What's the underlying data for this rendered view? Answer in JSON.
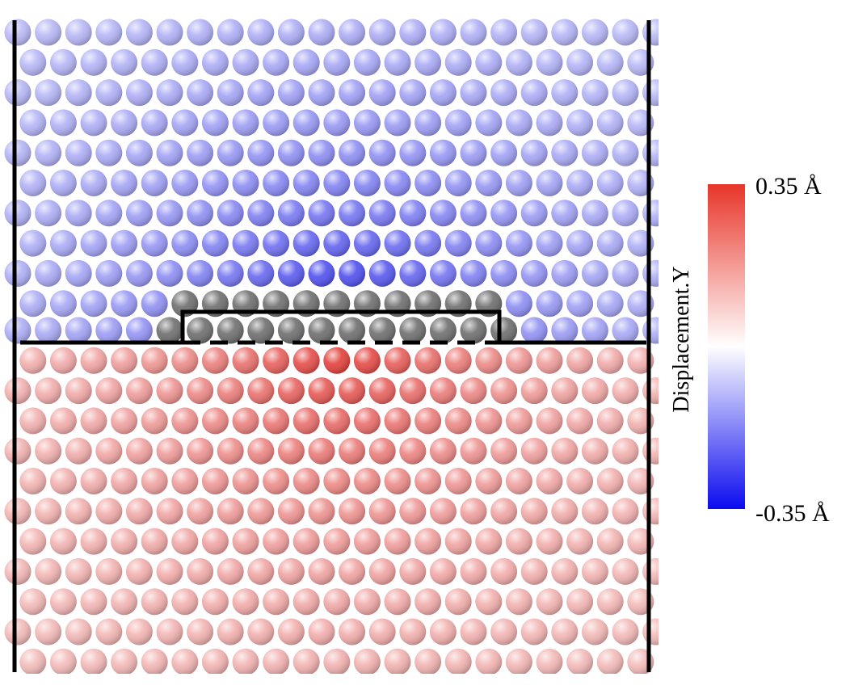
{
  "colorbar": {
    "label": "Displacement.Y",
    "max_label": "0.35 Å",
    "min_label": "-0.35 Å"
  }
}
